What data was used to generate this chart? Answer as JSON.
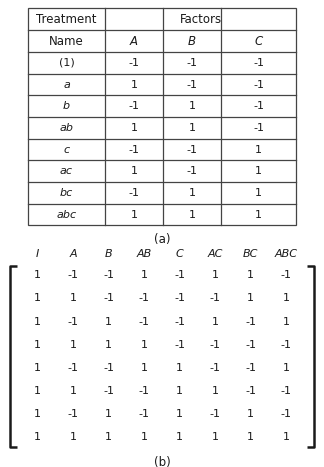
{
  "table_a": {
    "col_headers": [
      "A",
      "B",
      "C"
    ],
    "row_names": [
      "(1)",
      "a",
      "b",
      "ab",
      "c",
      "ac",
      "bc",
      "abc"
    ],
    "row_names_italic": [
      false,
      true,
      true,
      true,
      true,
      true,
      true,
      true
    ],
    "values": [
      [
        -1,
        -1,
        -1
      ],
      [
        1,
        -1,
        -1
      ],
      [
        -1,
        1,
        -1
      ],
      [
        1,
        1,
        -1
      ],
      [
        -1,
        -1,
        1
      ],
      [
        1,
        -1,
        1
      ],
      [
        -1,
        1,
        1
      ],
      [
        1,
        1,
        1
      ]
    ]
  },
  "table_b": {
    "col_headers": [
      "I",
      "A",
      "B",
      "AB",
      "C",
      "AC",
      "BC",
      "ABC"
    ],
    "values": [
      [
        1,
        -1,
        -1,
        1,
        -1,
        1,
        1,
        -1
      ],
      [
        1,
        1,
        -1,
        -1,
        -1,
        -1,
        1,
        1
      ],
      [
        1,
        -1,
        1,
        -1,
        -1,
        1,
        -1,
        1
      ],
      [
        1,
        1,
        1,
        1,
        -1,
        -1,
        -1,
        -1
      ],
      [
        1,
        -1,
        -1,
        1,
        1,
        -1,
        -1,
        1
      ],
      [
        1,
        1,
        -1,
        -1,
        1,
        1,
        -1,
        -1
      ],
      [
        1,
        -1,
        1,
        -1,
        1,
        -1,
        1,
        -1
      ],
      [
        1,
        1,
        1,
        1,
        1,
        1,
        1,
        1
      ]
    ]
  },
  "label_a": "(a)",
  "label_b": "(b)",
  "bg_color": "#ffffff",
  "text_color": "#1a1a1a",
  "line_color": "#444444",
  "font_size": 8.0,
  "header_font_size": 8.5
}
